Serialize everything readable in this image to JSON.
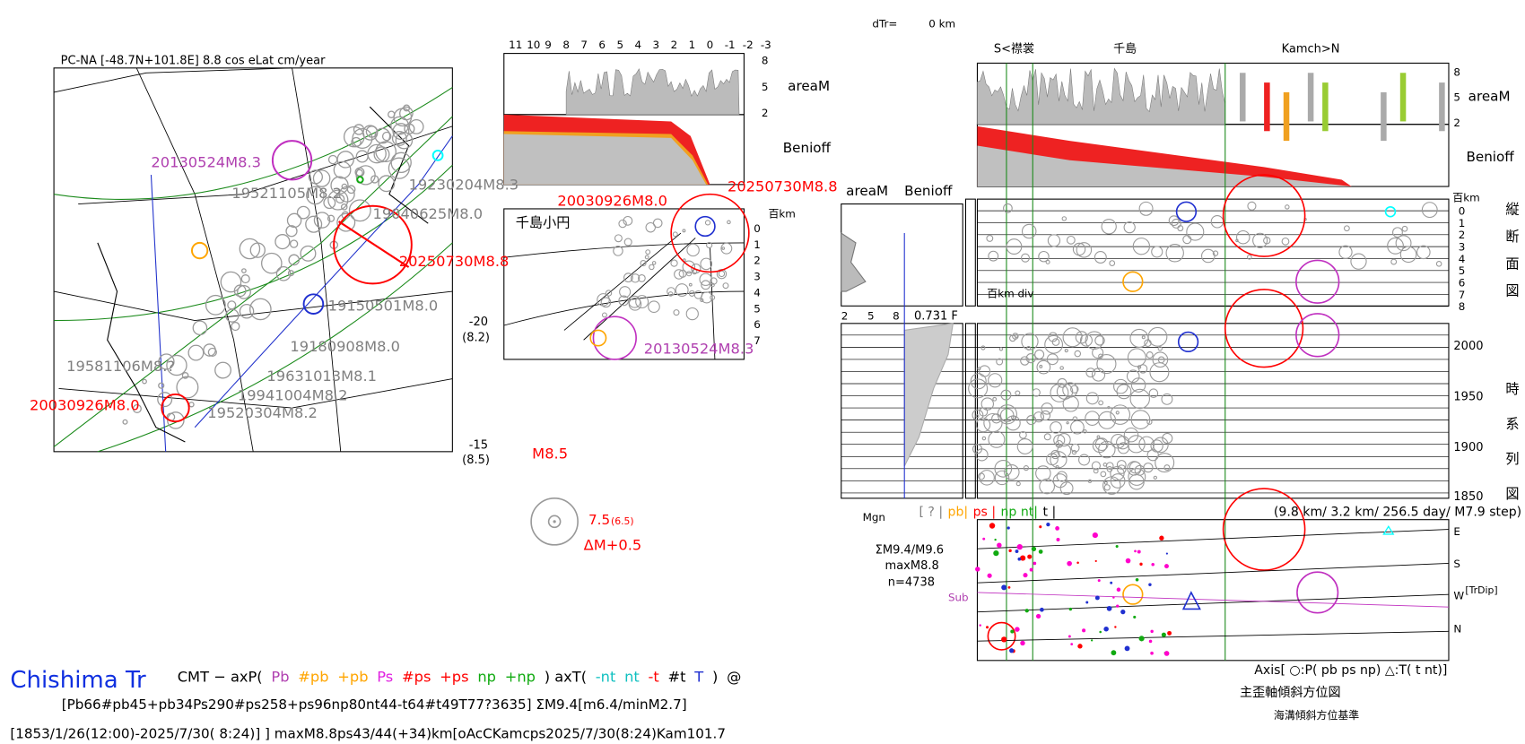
{
  "header": {
    "dtr_label": "dTr=",
    "dtr_value": "0 km"
  },
  "map": {
    "title": "PC-NA [-48.7N+101.8E] 8.8 cos eLat cm/year",
    "events": [
      "20130524M8.3",
      "19521105M8.2",
      "19230204M8.3",
      "19040625M8.0",
      "20250730M8.8",
      "19150501M8.0",
      "19180908M8.0",
      "19581106M8.?",
      "19631013M8.1",
      "19941004M8.2",
      "19520304M8.2",
      "20030926M8.0"
    ],
    "axis": [
      "-20",
      "(8.2)",
      "-15",
      "(8.5)"
    ]
  },
  "section_top": {
    "x_ticks": [
      "11",
      "10",
      "9",
      "8",
      "7",
      "6",
      "5",
      "4",
      "3",
      "2",
      "1",
      "0",
      "-1",
      "-2",
      "-3"
    ],
    "area_ticks": [
      "8",
      "5",
      "2"
    ],
    "area_label": "areaM",
    "benioff_label": "Benioff",
    "events": [
      "20030926M8.0",
      "20250730M8.8",
      "20130524M8.3"
    ],
    "arc_label": "千島小円",
    "depth_unit": "百km",
    "depth_ticks": [
      "0",
      "1",
      "2",
      "3",
      "4",
      "5",
      "6",
      "7"
    ]
  },
  "scale_legend": {
    "max": "M8.5",
    "mid": "7.5",
    "mid_sub": "(6.5)",
    "step": "ΔM+0.5"
  },
  "footer": {
    "name": "Chishima Tr",
    "cmt": [
      "CMT − axP(",
      "Pb",
      "#pb",
      "+pb",
      "Ps",
      "#ps",
      "+ps",
      "np",
      "+np",
      ") axT(",
      "-nt",
      "nt",
      "-t",
      "#t",
      "T",
      ")",
      "@"
    ],
    "counts": "[Pb66#pb45+pb34Ps290#ps258+ps96np80nt44-t64#t49T77?3635] ΣM9.4[m6.4/minM2.7]",
    "period": "[1853/1/26(12:00)-2025/7/30( 8:24)] ] maxM8.8ps43/44(+34)km[oAcCKamcps2025/7/30(8:24)Kam101.7"
  },
  "right": {
    "regions": [
      "S<襟裳",
      "千島",
      "Kamch>N"
    ],
    "area_ticks": [
      "8",
      "5",
      "2"
    ],
    "area_label": "areaM",
    "benioff_label": "Benioff",
    "depth_unit": "百km",
    "depth_ticks": [
      "0",
      "1",
      "2",
      "3",
      "4",
      "5",
      "6",
      "7",
      "8"
    ],
    "section_title": "縦断面図",
    "side_area_label": "areaM",
    "side_benioff_label": "Benioff",
    "depth_div": "百km div",
    "mag_ticks": [
      "2",
      "5",
      "8"
    ],
    "ratio": "0.731 F",
    "years": [
      "2000",
      "1950",
      "1900",
      "1850"
    ],
    "time_title": "時系列図",
    "mgn": "Mgn",
    "type_legend": [
      "[ ? |",
      "pb|",
      "ps |",
      "np nt|",
      "t |"
    ],
    "step": "(9.8 km/ 3.2 km/ 256.5 day/ M7.9 step)",
    "sum": "ΣM9.4/M9.6",
    "max": "maxM8.8",
    "count": "n=4738",
    "directions": [
      "E",
      "S",
      "W",
      "N"
    ],
    "trdip": "[TrDip]",
    "sub": "Sub",
    "axis_legend": "Axis[ ○:P( pb ps np) △:T( t nt)]",
    "axis_title": "主歪軸傾斜方位図",
    "axis_note": "海溝傾斜方位基準"
  }
}
